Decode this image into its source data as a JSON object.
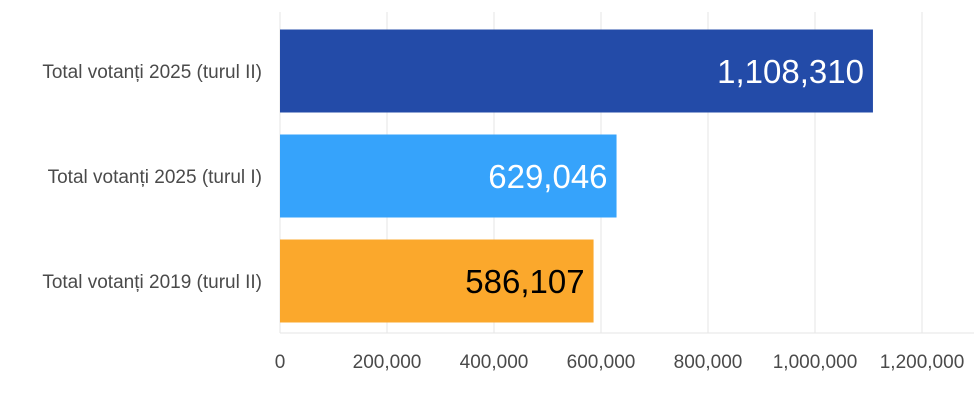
{
  "chart_data": {
    "type": "bar",
    "orientation": "horizontal",
    "categories": [
      "Total votanți 2025 (turul II)",
      "Total votanți 2025 (turul I)",
      "Total votanți 2019 (turul II)"
    ],
    "values": [
      1108310,
      629046,
      586107
    ],
    "value_labels": [
      "1,108,310",
      "629,046",
      "586,107"
    ],
    "bar_colors": [
      "#234ba8",
      "#36a3fb",
      "#fba82c"
    ],
    "value_label_colors": [
      "#ffffff",
      "#ffffff",
      "#000000"
    ],
    "x_ticks": [
      0,
      200000,
      400000,
      600000,
      800000,
      1000000,
      1200000
    ],
    "x_tick_labels": [
      "0",
      "200,000",
      "400,000",
      "600,000",
      "800,000",
      "1,000,000",
      "1,200,000"
    ],
    "xlim": [
      0,
      1300000
    ],
    "grid": true,
    "legend": false,
    "title": "",
    "xlabel": "",
    "ylabel": ""
  }
}
